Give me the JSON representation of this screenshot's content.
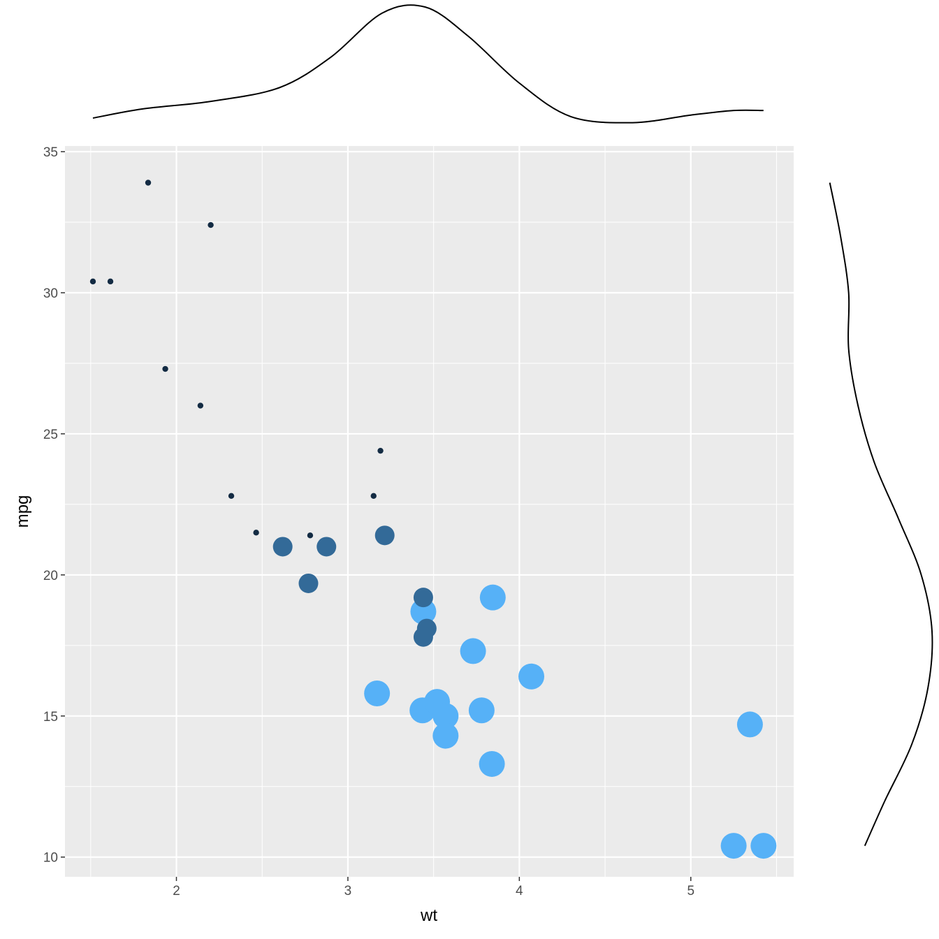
{
  "chart_data": {
    "type": "scatter",
    "title": "",
    "xlabel": "wt",
    "ylabel": "mpg",
    "xlim": [
      1.35,
      5.6
    ],
    "ylim": [
      9.3,
      35.2
    ],
    "x_ticks": [
      2,
      3,
      4,
      5
    ],
    "y_ticks": [
      10,
      15,
      20,
      25,
      30,
      35
    ],
    "x_tick_labels": [
      "2",
      "3",
      "4",
      "5"
    ],
    "y_tick_labels": [
      "10",
      "15",
      "20",
      "25",
      "30",
      "35"
    ],
    "grid": true,
    "legend": "none",
    "colors": {
      "small": "#132b43",
      "medium": "#336a98",
      "large": "#56b1f7"
    },
    "points": [
      {
        "x": 1.513,
        "y": 30.4,
        "size": 4,
        "color": "#132b43"
      },
      {
        "x": 1.615,
        "y": 30.4,
        "size": 4,
        "color": "#132b43"
      },
      {
        "x": 1.835,
        "y": 33.9,
        "size": 4,
        "color": "#132b43"
      },
      {
        "x": 1.935,
        "y": 27.3,
        "size": 4,
        "color": "#132b43"
      },
      {
        "x": 2.14,
        "y": 26.0,
        "size": 4,
        "color": "#132b43"
      },
      {
        "x": 2.2,
        "y": 32.4,
        "size": 4,
        "color": "#132b43"
      },
      {
        "x": 2.32,
        "y": 22.8,
        "size": 4,
        "color": "#132b43"
      },
      {
        "x": 2.465,
        "y": 21.5,
        "size": 4,
        "color": "#132b43"
      },
      {
        "x": 2.78,
        "y": 21.4,
        "size": 4,
        "color": "#132b43"
      },
      {
        "x": 3.15,
        "y": 22.8,
        "size": 4,
        "color": "#132b43"
      },
      {
        "x": 3.19,
        "y": 24.4,
        "size": 4,
        "color": "#132b43"
      },
      {
        "x": 2.62,
        "y": 21.0,
        "size": 6,
        "color": "#336a98"
      },
      {
        "x": 2.875,
        "y": 21.0,
        "size": 6,
        "color": "#336a98"
      },
      {
        "x": 2.77,
        "y": 19.7,
        "size": 6,
        "color": "#336a98"
      },
      {
        "x": 3.215,
        "y": 21.4,
        "size": 6,
        "color": "#336a98"
      },
      {
        "x": 3.44,
        "y": 18.7,
        "size": 8,
        "color": "#56b1f7"
      },
      {
        "x": 3.44,
        "y": 19.2,
        "size": 6,
        "color": "#336a98"
      },
      {
        "x": 3.46,
        "y": 18.1,
        "size": 6,
        "color": "#336a98"
      },
      {
        "x": 3.44,
        "y": 17.8,
        "size": 6,
        "color": "#336a98"
      },
      {
        "x": 3.845,
        "y": 19.2,
        "size": 8,
        "color": "#56b1f7"
      },
      {
        "x": 3.73,
        "y": 17.3,
        "size": 8,
        "color": "#56b1f7"
      },
      {
        "x": 4.07,
        "y": 16.4,
        "size": 8,
        "color": "#56b1f7"
      },
      {
        "x": 3.17,
        "y": 15.8,
        "size": 8,
        "color": "#56b1f7"
      },
      {
        "x": 3.435,
        "y": 15.2,
        "size": 8,
        "color": "#56b1f7"
      },
      {
        "x": 3.52,
        "y": 15.5,
        "size": 8,
        "color": "#56b1f7"
      },
      {
        "x": 3.57,
        "y": 15.0,
        "size": 8,
        "color": "#56b1f7"
      },
      {
        "x": 3.78,
        "y": 15.2,
        "size": 8,
        "color": "#56b1f7"
      },
      {
        "x": 3.57,
        "y": 14.3,
        "size": 8,
        "color": "#56b1f7"
      },
      {
        "x": 3.84,
        "y": 13.3,
        "size": 8,
        "color": "#56b1f7"
      },
      {
        "x": 5.345,
        "y": 14.7,
        "size": 8,
        "color": "#56b1f7"
      },
      {
        "x": 5.25,
        "y": 10.4,
        "size": 8,
        "color": "#56b1f7"
      },
      {
        "x": 5.424,
        "y": 10.4,
        "size": 8,
        "color": "#56b1f7"
      }
    ],
    "marginal_x_density": {
      "x": [
        1.513,
        1.8,
        2.2,
        2.6,
        2.9,
        3.2,
        3.45,
        3.7,
        4.0,
        4.3,
        4.66,
        5.0,
        5.25,
        5.424
      ],
      "density": [
        0.11,
        0.17,
        0.22,
        0.31,
        0.51,
        0.8,
        0.84,
        0.65,
        0.34,
        0.12,
        0.08,
        0.13,
        0.16,
        0.16
      ]
    },
    "marginal_y_density": {
      "y": [
        10.4,
        12,
        14,
        16,
        18,
        20,
        22,
        24,
        26,
        28,
        30,
        32,
        33.9
      ],
      "density": [
        0.03,
        0.045,
        0.065,
        0.077,
        0.08,
        0.072,
        0.055,
        0.037,
        0.025,
        0.018,
        0.018,
        0.012,
        0.004
      ]
    }
  }
}
